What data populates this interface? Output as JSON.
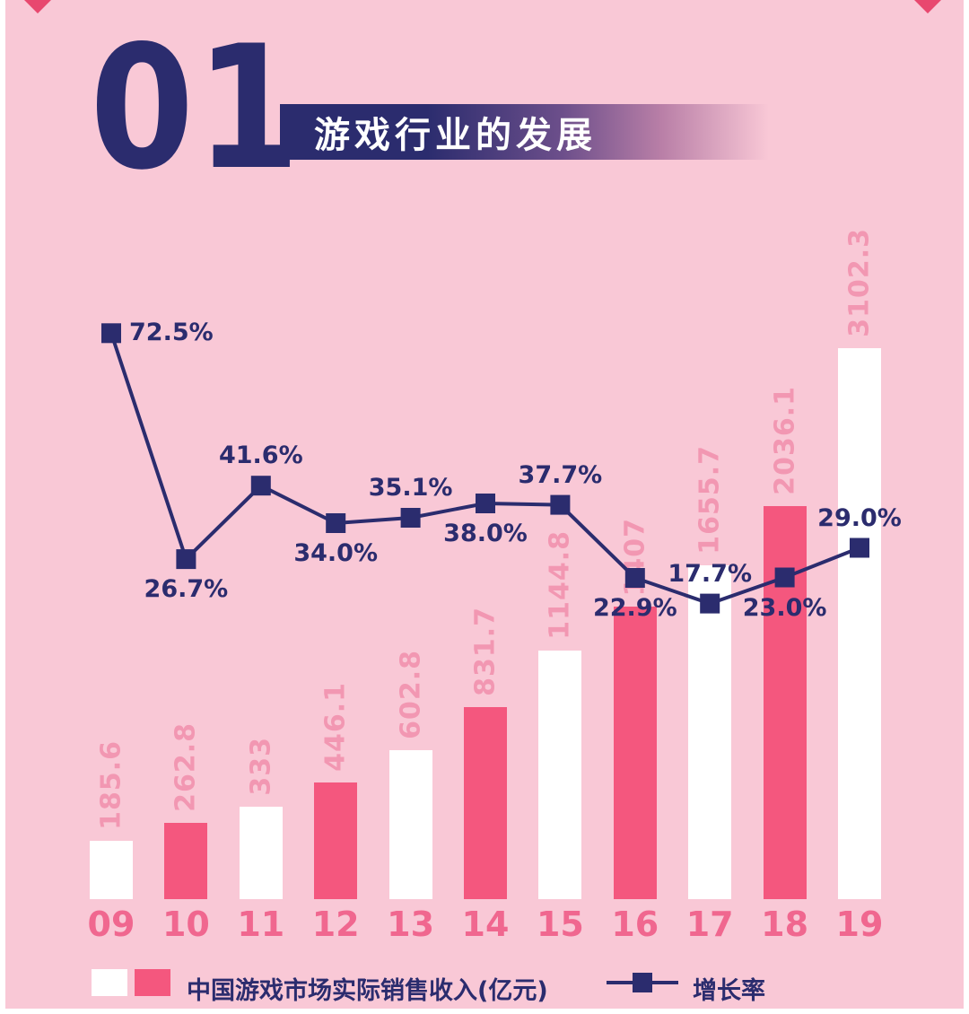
{
  "header": {
    "number": "01",
    "title": "游戏行业的发展"
  },
  "chart_data": {
    "type": "combo",
    "title": "",
    "categories": [
      "09",
      "10",
      "11",
      "12",
      "13",
      "14",
      "15",
      "16",
      "17",
      "18",
      "19"
    ],
    "series": [
      {
        "name": "中国游戏市场实际销售收入(亿元)",
        "type": "bar",
        "values": [
          185.6,
          262.8,
          333,
          446.1,
          602.8,
          831.7,
          1144.8,
          1407,
          1655.7,
          2036.1,
          3102.3
        ],
        "value_labels": [
          "185.6",
          "262.8",
          "333",
          "446.1",
          "602.8",
          "831.7",
          "1144.8",
          "1407",
          "1655.7",
          "2036.1",
          "3102.3"
        ]
      },
      {
        "name": "增长率",
        "type": "line",
        "values": [
          72.5,
          26.7,
          41.6,
          34.0,
          35.1,
          38.0,
          37.7,
          22.9,
          17.7,
          23.0,
          29.0
        ],
        "value_labels": [
          "72.5%",
          "26.7%",
          "41.6%",
          "34.0%",
          "35.1%",
          "38.0%",
          "37.7%",
          "22.9%",
          "17.7%",
          "23.0%",
          "29.0%"
        ],
        "label_positions": [
          "right",
          "below",
          "above",
          "below",
          "above",
          "below",
          "above",
          "below",
          "above",
          "below",
          "above"
        ]
      }
    ],
    "ylim_bar": [
      0,
      3200
    ],
    "ylim_pct": [
      10,
      80
    ],
    "grid": false,
    "legend_position": "bottom"
  },
  "legend": {
    "bars_label": "中国游戏市场实际销售收入(亿元)",
    "line_label": "增长率"
  },
  "colors": {
    "background": "#F9C8D6",
    "navy": "#2B2C6E",
    "bar_pink": "#F4577E",
    "bar_white": "#FFFFFF",
    "bar_value_label": "#F297B2",
    "x_label": "#F0678F",
    "corner_accent": "#E8486F"
  }
}
